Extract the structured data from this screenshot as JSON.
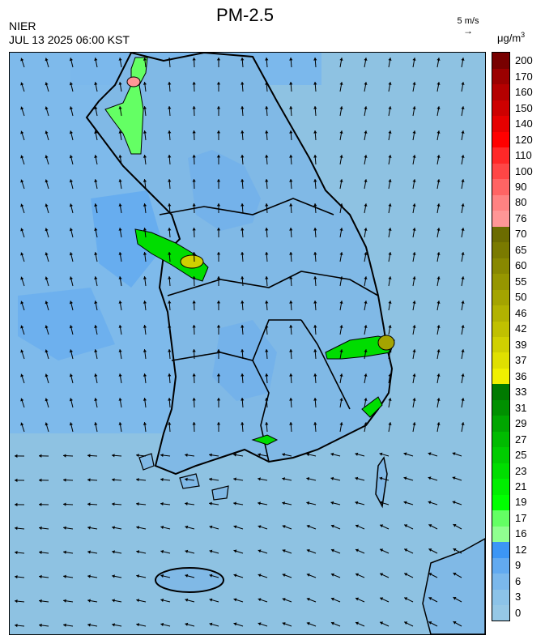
{
  "header": {
    "title": "PM-2.5",
    "agency": "NIER",
    "timestamp": "JUL 13 2025 06:00 KST",
    "wind_reference": "5 m/s",
    "wind_reference_arrow": "→",
    "unit_base": "μg/m",
    "unit_exp": "3"
  },
  "legend": {
    "levels": [
      {
        "label": "0",
        "color": "#96c8e6"
      },
      {
        "label": "3",
        "color": "#8cc3e8"
      },
      {
        "label": "6",
        "color": "#7bb8ec"
      },
      {
        "label": "9",
        "color": "#62aaf0"
      },
      {
        "label": "12",
        "color": "#3c96f5"
      },
      {
        "label": "16",
        "color": "#90ff90"
      },
      {
        "label": "17",
        "color": "#64ff64"
      },
      {
        "label": "19",
        "color": "#00ff00"
      },
      {
        "label": "21",
        "color": "#00ee00"
      },
      {
        "label": "23",
        "color": "#00dd00"
      },
      {
        "label": "25",
        "color": "#00cc00"
      },
      {
        "label": "27",
        "color": "#00bb00"
      },
      {
        "label": "29",
        "color": "#00a600"
      },
      {
        "label": "31",
        "color": "#009000"
      },
      {
        "label": "33",
        "color": "#007a00"
      },
      {
        "label": "36",
        "color": "#f0f000"
      },
      {
        "label": "37",
        "color": "#e0e000"
      },
      {
        "label": "39",
        "color": "#d0d000"
      },
      {
        "label": "42",
        "color": "#c0c000"
      },
      {
        "label": "46",
        "color": "#b2b200"
      },
      {
        "label": "50",
        "color": "#a4a400"
      },
      {
        "label": "55",
        "color": "#969600"
      },
      {
        "label": "60",
        "color": "#888800"
      },
      {
        "label": "65",
        "color": "#7a7a00"
      },
      {
        "label": "70",
        "color": "#6c6c00"
      },
      {
        "label": "76",
        "color": "#ff9696"
      },
      {
        "label": "80",
        "color": "#ff8282"
      },
      {
        "label": "90",
        "color": "#ff6464"
      },
      {
        "label": "100",
        "color": "#ff4646"
      },
      {
        "label": "110",
        "color": "#ff2828"
      },
      {
        "label": "120",
        "color": "#ff0000"
      },
      {
        "label": "140",
        "color": "#e60000"
      },
      {
        "label": "150",
        "color": "#cd0000"
      },
      {
        "label": "160",
        "color": "#b40000"
      },
      {
        "label": "170",
        "color": "#9b0000"
      },
      {
        "label": "200",
        "color": "#780000"
      }
    ]
  }
}
